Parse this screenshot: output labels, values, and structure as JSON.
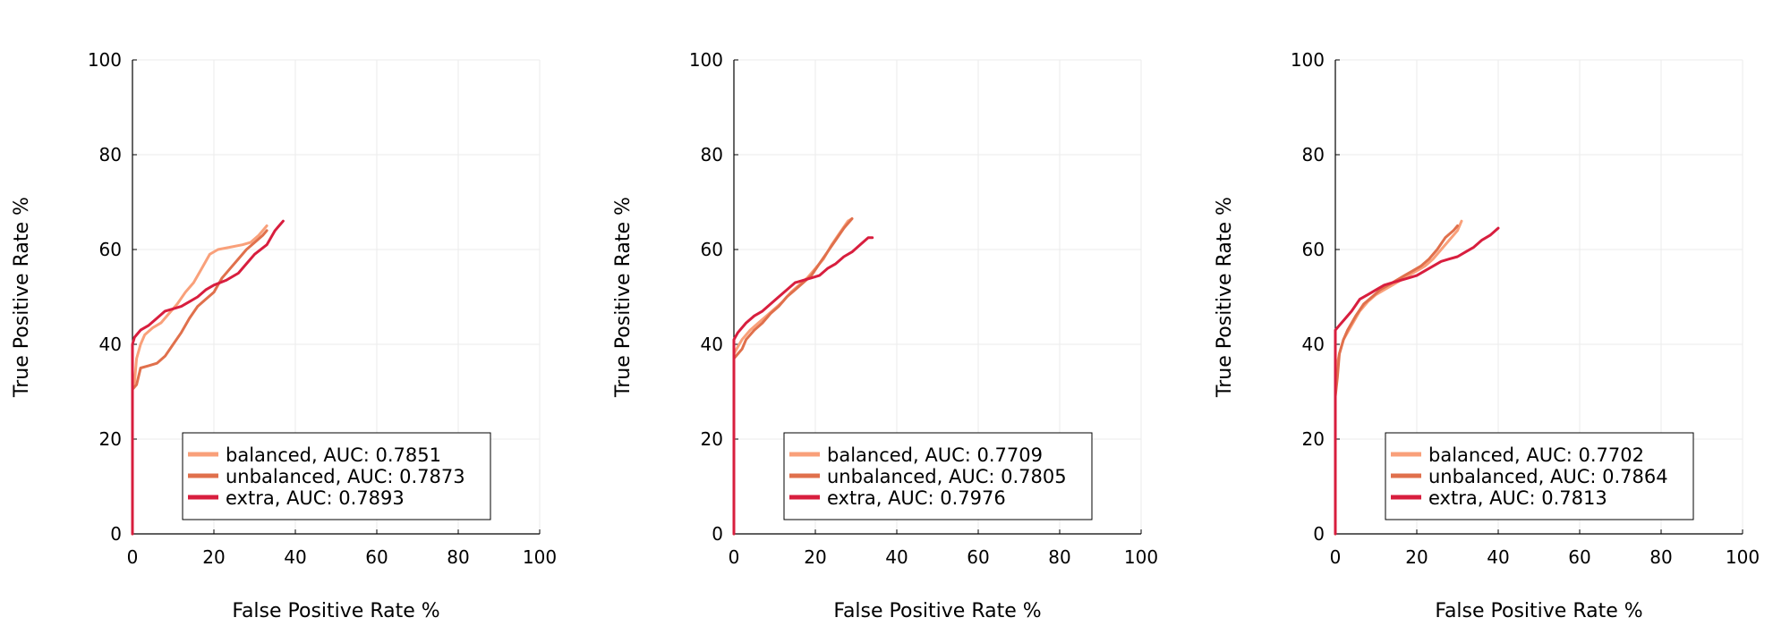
{
  "colors": {
    "balanced": "#f9a07a",
    "unbalanced": "#e0704c",
    "extra": "#d81e3e",
    "grid": "#ebebeb",
    "axis": "#000000"
  },
  "chart_data": [
    {
      "type": "line",
      "xlabel": "False Positive Rate %",
      "ylabel": "True Positive Rate %",
      "xlim": [
        0,
        100
      ],
      "ylim": [
        0,
        100
      ],
      "xticks": [
        0,
        20,
        40,
        60,
        80,
        100
      ],
      "yticks": [
        0,
        20,
        40,
        60,
        80,
        100
      ],
      "grid": true,
      "legend_position": "bottom-left",
      "series": [
        {
          "name": "balanced",
          "auc_label": "balanced, AUC: 0.7851",
          "color": "#f9a07a",
          "points": [
            [
              0,
              0
            ],
            [
              0,
              31
            ],
            [
              0.5,
              32
            ],
            [
              1,
              37
            ],
            [
              2,
              40
            ],
            [
              3,
              42
            ],
            [
              5,
              43.5
            ],
            [
              7,
              44.5
            ],
            [
              9,
              46.5
            ],
            [
              11,
              48.5
            ],
            [
              13,
              51
            ],
            [
              15,
              53
            ],
            [
              17,
              56
            ],
            [
              19,
              59
            ],
            [
              21,
              60
            ],
            [
              24,
              60.5
            ],
            [
              27,
              61
            ],
            [
              29,
              61.5
            ],
            [
              31,
              63
            ],
            [
              33,
              65
            ]
          ]
        },
        {
          "name": "unbalanced",
          "auc_label": "unbalanced, AUC: 0.7873",
          "color": "#e0704c",
          "points": [
            [
              0,
              0
            ],
            [
              0,
              30.5
            ],
            [
              1,
              31.5
            ],
            [
              2,
              35
            ],
            [
              4,
              35.5
            ],
            [
              6,
              36
            ],
            [
              8,
              37.5
            ],
            [
              10,
              40
            ],
            [
              12,
              42.5
            ],
            [
              14,
              45.5
            ],
            [
              16,
              48
            ],
            [
              18,
              49.5
            ],
            [
              20,
              51
            ],
            [
              22,
              54
            ],
            [
              24,
              56
            ],
            [
              26,
              58
            ],
            [
              28,
              60
            ],
            [
              30,
              61.5
            ],
            [
              32,
              63
            ],
            [
              33,
              64
            ]
          ]
        },
        {
          "name": "extra",
          "auc_label": "extra, AUC: 0.7893",
          "color": "#d81e3e",
          "points": [
            [
              0,
              0
            ],
            [
              0,
              40
            ],
            [
              0.5,
              41.5
            ],
            [
              2,
              43
            ],
            [
              4,
              44
            ],
            [
              6,
              45.5
            ],
            [
              8,
              47
            ],
            [
              10,
              47.5
            ],
            [
              12,
              48
            ],
            [
              14,
              49
            ],
            [
              16,
              50
            ],
            [
              18,
              51.5
            ],
            [
              20,
              52.5
            ],
            [
              23,
              53.5
            ],
            [
              26,
              55
            ],
            [
              28,
              57
            ],
            [
              30,
              59
            ],
            [
              33,
              61
            ],
            [
              34,
              62.5
            ],
            [
              35,
              64
            ],
            [
              36,
              65
            ],
            [
              37,
              66
            ]
          ]
        }
      ]
    },
    {
      "type": "line",
      "xlabel": "False Positive Rate %",
      "ylabel": "True Positive Rate %",
      "xlim": [
        0,
        100
      ],
      "ylim": [
        0,
        100
      ],
      "xticks": [
        0,
        20,
        40,
        60,
        80,
        100
      ],
      "yticks": [
        0,
        20,
        40,
        60,
        80,
        100
      ],
      "grid": true,
      "legend_position": "bottom-left",
      "series": [
        {
          "name": "balanced",
          "auc_label": "balanced, AUC: 0.7709",
          "color": "#f9a07a",
          "points": [
            [
              0,
              0
            ],
            [
              0,
              38
            ],
            [
              1,
              39.5
            ],
            [
              2,
              41
            ],
            [
              4,
              43
            ],
            [
              6,
              44.5
            ],
            [
              8,
              46
            ],
            [
              10,
              47.5
            ],
            [
              12,
              49
            ],
            [
              14,
              51
            ],
            [
              16,
              52.5
            ],
            [
              18,
              54
            ],
            [
              20,
              56
            ],
            [
              22,
              58
            ],
            [
              24,
              61
            ],
            [
              26,
              63.5
            ],
            [
              28,
              66
            ],
            [
              29,
              66.5
            ]
          ]
        },
        {
          "name": "unbalanced",
          "auc_label": "unbalanced, AUC: 0.7805",
          "color": "#e0704c",
          "points": [
            [
              0,
              0
            ],
            [
              0,
              37
            ],
            [
              1,
              38
            ],
            [
              2,
              39
            ],
            [
              3,
              41
            ],
            [
              5,
              43
            ],
            [
              7,
              44.5
            ],
            [
              9,
              46.5
            ],
            [
              11,
              48
            ],
            [
              13,
              50
            ],
            [
              15,
              51.5
            ],
            [
              17,
              53
            ],
            [
              19,
              54.5
            ],
            [
              21,
              57
            ],
            [
              23,
              59.5
            ],
            [
              25,
              62
            ],
            [
              27,
              64.5
            ],
            [
              29,
              66.5
            ]
          ]
        },
        {
          "name": "extra",
          "auc_label": "extra, AUC: 0.7976",
          "color": "#d81e3e",
          "points": [
            [
              0,
              0
            ],
            [
              0,
              41
            ],
            [
              1,
              42.5
            ],
            [
              3,
              44.5
            ],
            [
              5,
              46
            ],
            [
              7,
              47
            ],
            [
              9,
              48.5
            ],
            [
              11,
              50
            ],
            [
              13,
              51.5
            ],
            [
              15,
              53
            ],
            [
              17,
              53.5
            ],
            [
              19,
              54
            ],
            [
              21,
              54.5
            ],
            [
              23,
              56
            ],
            [
              25,
              57
            ],
            [
              27,
              58.5
            ],
            [
              29,
              59.5
            ],
            [
              31,
              61
            ],
            [
              33,
              62.5
            ],
            [
              34,
              62.5
            ]
          ]
        }
      ]
    },
    {
      "type": "line",
      "xlabel": "False Positive Rate %",
      "ylabel": "True Positive Rate %",
      "xlim": [
        0,
        100
      ],
      "ylim": [
        0,
        100
      ],
      "xticks": [
        0,
        20,
        40,
        60,
        80,
        100
      ],
      "yticks": [
        0,
        20,
        40,
        60,
        80,
        100
      ],
      "grid": true,
      "legend_position": "bottom-left",
      "series": [
        {
          "name": "balanced",
          "auc_label": "balanced, AUC: 0.7702",
          "color": "#f9a07a",
          "points": [
            [
              0,
              0
            ],
            [
              0,
              33
            ],
            [
              0.5,
              36
            ],
            [
              1,
              38
            ],
            [
              2,
              41
            ],
            [
              4,
              44
            ],
            [
              6,
              47
            ],
            [
              8,
              49
            ],
            [
              10,
              50.5
            ],
            [
              12,
              51.5
            ],
            [
              14,
              52.5
            ],
            [
              16,
              53.5
            ],
            [
              18,
              54.5
            ],
            [
              20,
              55.5
            ],
            [
              22,
              56.5
            ],
            [
              24,
              58
            ],
            [
              26,
              60
            ],
            [
              28,
              62
            ],
            [
              30,
              64
            ],
            [
              31,
              66
            ]
          ]
        },
        {
          "name": "unbalanced",
          "auc_label": "unbalanced, AUC: 0.7864",
          "color": "#e0704c",
          "points": [
            [
              0,
              0
            ],
            [
              0,
              29
            ],
            [
              0.5,
              33
            ],
            [
              1,
              38
            ],
            [
              2,
              41
            ],
            [
              3,
              43
            ],
            [
              5,
              46
            ],
            [
              7,
              48.5
            ],
            [
              9,
              50
            ],
            [
              11,
              51.5
            ],
            [
              13,
              52.5
            ],
            [
              15,
              53.5
            ],
            [
              17,
              54.5
            ],
            [
              19,
              55.5
            ],
            [
              21,
              56.5
            ],
            [
              23,
              58
            ],
            [
              25,
              60
            ],
            [
              27,
              62.5
            ],
            [
              29,
              64
            ],
            [
              30,
              65
            ]
          ]
        },
        {
          "name": "extra",
          "auc_label": "extra, AUC: 0.7813",
          "color": "#d81e3e",
          "points": [
            [
              0,
              0
            ],
            [
              0,
              43
            ],
            [
              1,
              44
            ],
            [
              2,
              45
            ],
            [
              4,
              47
            ],
            [
              6,
              49.5
            ],
            [
              8,
              50.5
            ],
            [
              10,
              51.5
            ],
            [
              12,
              52.5
            ],
            [
              14,
              53
            ],
            [
              16,
              53.5
            ],
            [
              18,
              54
            ],
            [
              20,
              54.5
            ],
            [
              22,
              55.5
            ],
            [
              24,
              56.5
            ],
            [
              26,
              57.5
            ],
            [
              28,
              58
            ],
            [
              30,
              58.5
            ],
            [
              32,
              59.5
            ],
            [
              34,
              60.5
            ],
            [
              36,
              62
            ],
            [
              38,
              63
            ],
            [
              40,
              64.5
            ]
          ]
        }
      ]
    }
  ]
}
